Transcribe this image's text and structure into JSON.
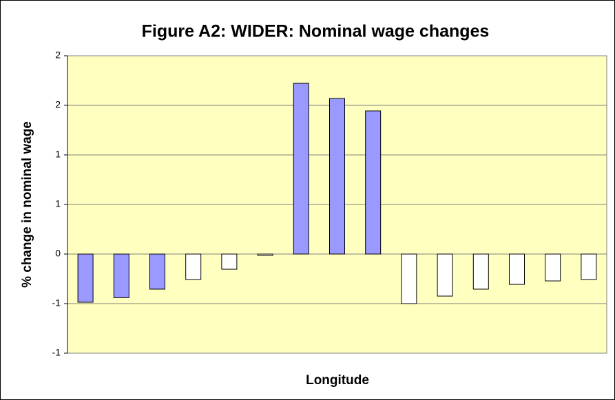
{
  "chart_data": {
    "type": "bar",
    "title": "Figure A2: WIDER: Nominal wage changes",
    "y_label": "% change in nominal wage",
    "x_label": "Longitude",
    "categories": [
      null,
      null,
      null,
      null,
      null,
      null,
      null,
      null,
      null,
      null,
      null,
      null,
      null,
      null,
      null
    ],
    "values": [
      -0.486,
      -0.44,
      -0.354,
      -0.257,
      -0.153,
      -0.014,
      1.722,
      1.569,
      1.444,
      -0.5,
      -0.424,
      -0.354,
      -0.306,
      -0.271,
      -0.257
    ],
    "colors": [
      "#9999ff",
      "#9999ff",
      "#9999ff",
      "#ffffff",
      "#ffffff",
      "#ffffff",
      "#9999ff",
      "#9999ff",
      "#9999ff",
      "#ffffff",
      "#ffffff",
      "#ffffff",
      "#ffffff",
      "#ffffff",
      "#ffffff"
    ],
    "ylim": [
      -1,
      2
    ],
    "yticks": [
      {
        "value": -1,
        "label": "-1"
      },
      {
        "value": -0.5,
        "label": "-1"
      },
      0,
      {
        "value": 0.5,
        "label": "1"
      },
      1,
      {
        "value": 1.5,
        "label": "2"
      },
      2
    ],
    "grid": true,
    "plot_background": "#ffffc0"
  }
}
